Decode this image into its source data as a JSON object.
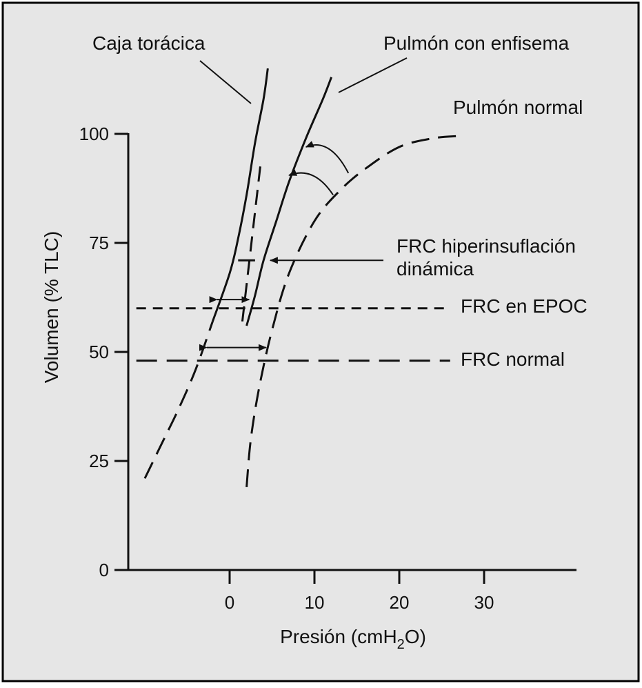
{
  "chart_data": {
    "type": "line",
    "title": "",
    "xlabel": {
      "main": "Presión (cmH",
      "sub": "2",
      "tail": "O)"
    },
    "ylabel": "Volumen (% TLC)",
    "xlim": [
      -12,
      40
    ],
    "ylim": [
      0,
      100
    ],
    "x_ticks": [
      0,
      10,
      20,
      30
    ],
    "y_ticks": [
      0,
      25,
      50,
      75,
      100
    ],
    "grid": false,
    "legend": "none",
    "colors": {
      "background": "#e6e6e6",
      "ink": "#111111",
      "frame": "#000000"
    },
    "series": [
      {
        "name": "Caja torácica",
        "style": "solid-upper-dashed-lower",
        "x": [
          -10,
          -8,
          -6,
          -4,
          -2,
          0,
          1,
          2,
          3,
          4,
          4.5
        ],
        "y": [
          21,
          29,
          37,
          46,
          57,
          68,
          76,
          86,
          98,
          108,
          115
        ]
      },
      {
        "name": "Pulmón normal",
        "style": "dashed",
        "x": [
          2,
          2.5,
          3.5,
          5,
          7,
          10,
          13,
          16,
          20,
          24,
          27
        ],
        "y": [
          19,
          30,
          42,
          55,
          68,
          80,
          87,
          92,
          97,
          99,
          99.5
        ]
      },
      {
        "name": "Pulmón con enfisema",
        "style": "solid",
        "x": [
          2,
          3,
          4,
          5.5,
          7,
          9,
          11,
          12
        ],
        "y": [
          56,
          63,
          71,
          80,
          89,
          99,
          108,
          113
        ]
      }
    ],
    "dashed_segment": {
      "x": [
        1.5,
        3.7
      ],
      "y": [
        57,
        94
      ]
    },
    "reference_lines": [
      {
        "name": "FRC en EPOC",
        "y": 60,
        "x_from": -11,
        "x_to": 26
      },
      {
        "name": "FRC normal",
        "y": 48,
        "x_from": -11,
        "x_to": 26
      }
    ],
    "annotations": {
      "caja_label": "Caja torácica",
      "enfisema_label": "Pulmón con enfisema",
      "normal_label": "Pulmón normal",
      "hiper_label_1": "FRC hiperinsuflación",
      "hiper_label_2": "dinámica",
      "epoc_label": "FRC en EPOC",
      "frc_normal_label": "FRC normal"
    },
    "dynamic_hyperinflation": {
      "y": 71,
      "x_from": 1,
      "x_to": 3
    },
    "double_arrows": [
      {
        "y": 62,
        "x_from": -1.5,
        "x_to": 2.3
      },
      {
        "y": 51,
        "x_from": -2.7,
        "x_to": 4.3
      }
    ],
    "curved_arrows": [
      {
        "from": [
          14,
          91
        ],
        "to": [
          9,
          97
        ]
      },
      {
        "from": [
          12.2,
          86
        ],
        "to": [
          7,
          90.5
        ]
      }
    ]
  }
}
